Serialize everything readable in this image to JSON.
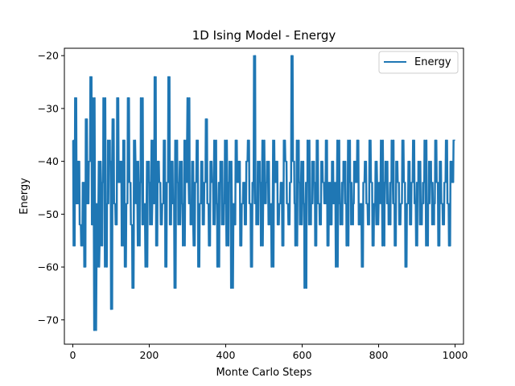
{
  "chart_data": {
    "type": "line",
    "title": "1D Ising Model - Energy",
    "xlabel": "Monte Carlo Steps",
    "ylabel": "Energy",
    "xlim": [
      -22,
      1022
    ],
    "ylim": [
      -74.6,
      -18.6
    ],
    "xticks": [
      0,
      200,
      400,
      600,
      800,
      1000
    ],
    "xtick_labels": [
      "0",
      "200",
      "400",
      "600",
      "800",
      "1000"
    ],
    "yticks": [
      -70,
      -60,
      -50,
      -40,
      -30,
      -20
    ],
    "ytick_labels": [
      "−70",
      "−60",
      "−50",
      "−40",
      "−30",
      "−20"
    ],
    "grid": false,
    "legend_position": "top-right",
    "series": [
      {
        "name": "Energy",
        "color": "#1f77b4",
        "description": "Energy at each Monte Carlo step; values are multiples of 4 fluctuating between -72 and -20 around a mean near -47, starting at -36.",
        "x_start": 0,
        "x_end": 1000,
        "count": 1001,
        "values_sampled": [
          -36,
          -56,
          -28,
          -48,
          -40,
          -52,
          -56,
          -44,
          -60,
          -32,
          -48,
          -40,
          -24,
          -52,
          -28,
          -72,
          -48,
          -60,
          -40,
          -56,
          -44,
          -28,
          -60,
          -48,
          -36,
          -40,
          -68,
          -32,
          -48,
          -52,
          -28,
          -44,
          -40,
          -56,
          -36,
          -60,
          -48,
          -28,
          -44,
          -52,
          -64,
          -36,
          -48,
          -40,
          -56,
          -44,
          -28,
          -52,
          -48,
          -60,
          -40,
          -44,
          -52,
          -36,
          -48,
          -24,
          -56,
          -40,
          -44,
          -52,
          -48,
          -36,
          -60,
          -44,
          -24,
          -52,
          -40,
          -48,
          -64,
          -36,
          -44,
          -52,
          -40,
          -48,
          -56,
          -36,
          -44,
          -28,
          -48,
          -52,
          -40,
          -56,
          -44,
          -36,
          -60,
          -48,
          -40,
          -52,
          -44,
          -32,
          -48,
          -56,
          -40,
          -44,
          -52,
          -36,
          -48,
          -60,
          -44,
          -40,
          -52,
          -48,
          -36,
          -56,
          -44,
          -40,
          -64,
          -48,
          -52,
          -36,
          -44,
          -40,
          -56,
          -48,
          -44,
          -52,
          -40,
          -36,
          -48,
          -60,
          -44,
          -20,
          -48,
          -52,
          -40,
          -44,
          -56,
          -36,
          -48,
          -44,
          -40,
          -52,
          -48,
          -60,
          -36,
          -44,
          -40,
          -52,
          -48,
          -44,
          -56,
          -36,
          -40,
          -48,
          -52,
          -44,
          -20,
          -40,
          -48,
          -56,
          -36,
          -44,
          -52,
          -40,
          -48,
          -64,
          -44,
          -36,
          -52,
          -48,
          -40,
          -44,
          -56,
          -36,
          -48,
          -52,
          -40,
          -44,
          -48,
          -36,
          -56,
          -44,
          -52,
          -40,
          -48,
          -44,
          -60,
          -36,
          -48,
          -52,
          -44,
          -40,
          -48,
          -56,
          -36,
          -44,
          -52,
          -48,
          -40,
          -44,
          -36,
          -52,
          -48,
          -60,
          -44,
          -40,
          -48,
          -52,
          -36,
          -44,
          -56,
          -48,
          -40,
          -52,
          -44,
          -48,
          -36,
          -56,
          -44,
          -40,
          -48,
          -52,
          -44,
          -36,
          -48,
          -56,
          -40,
          -44,
          -52,
          -48,
          -36,
          -44,
          -60,
          -48,
          -40,
          -52,
          -44,
          -36,
          -48,
          -56,
          -44,
          -40,
          -52,
          -48,
          -44,
          -36,
          -56,
          -48,
          -40,
          -44,
          -52,
          -48,
          -36,
          -44,
          -56,
          -40,
          -48,
          -52,
          -44,
          -36,
          -48,
          -56,
          -40,
          -44,
          -36
        ]
      }
    ]
  }
}
